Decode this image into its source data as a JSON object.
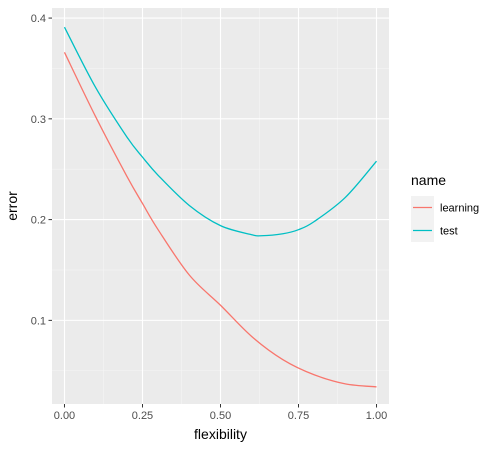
{
  "chart_data": {
    "type": "line",
    "title": "",
    "xlabel": "flexibility",
    "ylabel": "error",
    "xlim": [
      -0.04,
      1.04
    ],
    "ylim": [
      0.017,
      0.41
    ],
    "x_ticks": [
      0.0,
      0.25,
      0.5,
      0.75,
      1.0
    ],
    "x_tick_labels": [
      "0.00",
      "0.25",
      "0.50",
      "0.75",
      "1.00"
    ],
    "y_ticks": [
      0.1,
      0.2,
      0.3,
      0.4
    ],
    "y_tick_labels": [
      "0.1",
      "0.2",
      "0.3",
      "0.4"
    ],
    "grid": true,
    "background_color": "#EBEBEB",
    "legend": {
      "title": "name",
      "placement": "right"
    },
    "series": [
      {
        "name": "learning",
        "color": "#F8766D",
        "x": [
          0.0,
          0.1,
          0.2,
          0.25,
          0.3,
          0.4,
          0.5,
          0.6,
          0.7,
          0.8,
          0.9,
          1.0
        ],
        "y": [
          0.366,
          0.302,
          0.243,
          0.216,
          0.19,
          0.145,
          0.115,
          0.084,
          0.061,
          0.046,
          0.037,
          0.034
        ]
      },
      {
        "name": "test",
        "color": "#00BFC4",
        "x": [
          0.0,
          0.1,
          0.2,
          0.25,
          0.3,
          0.4,
          0.5,
          0.6,
          0.63,
          0.7,
          0.75,
          0.8,
          0.9,
          1.0
        ],
        "y": [
          0.391,
          0.331,
          0.282,
          0.262,
          0.244,
          0.214,
          0.194,
          0.185,
          0.184,
          0.186,
          0.19,
          0.198,
          0.222,
          0.258
        ]
      }
    ]
  }
}
